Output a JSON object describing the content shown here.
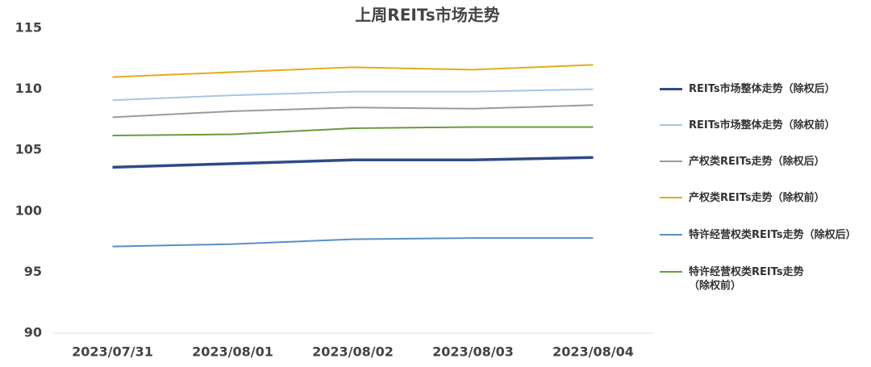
{
  "chart_data": {
    "type": "line",
    "title": "上周REITs市场走势",
    "categories": [
      "2023/07/31",
      "2023/08/01",
      "2023/08/02",
      "2023/08/03",
      "2023/08/04"
    ],
    "series": [
      {
        "name": "REITs市场整体走势（除权后）",
        "color": "#2f4b87",
        "width": 3.5,
        "values": [
          103.6,
          103.9,
          104.2,
          104.2,
          104.4
        ]
      },
      {
        "name": "REITs市场整体走势（除权前）",
        "color": "#a9c6e3",
        "width": 2,
        "values": [
          109.1,
          109.5,
          109.8,
          109.8,
          110.0
        ]
      },
      {
        "name": "产权类REITs走势（除权后）",
        "color": "#9b9b9b",
        "width": 2,
        "values": [
          107.7,
          108.2,
          108.5,
          108.4,
          108.7
        ]
      },
      {
        "name": "产权类REITs走势（除权前）",
        "color": "#e4ac1a",
        "width": 2,
        "values": [
          111.0,
          111.4,
          111.8,
          111.6,
          112.0
        ]
      },
      {
        "name": "特许经营权类REITs走势（除权后）",
        "color": "#5b8ec6",
        "width": 2,
        "values": [
          97.1,
          97.3,
          97.7,
          97.8,
          97.8
        ]
      },
      {
        "name": "特许经营权类REITs走势\n（除权前）",
        "color": "#6a9a3e",
        "width": 2,
        "values": [
          106.2,
          106.3,
          106.8,
          106.9,
          106.9
        ]
      }
    ],
    "ylim": [
      90,
      115
    ],
    "yticks": [
      90,
      95,
      100,
      105,
      110,
      115
    ],
    "legend": "right"
  }
}
